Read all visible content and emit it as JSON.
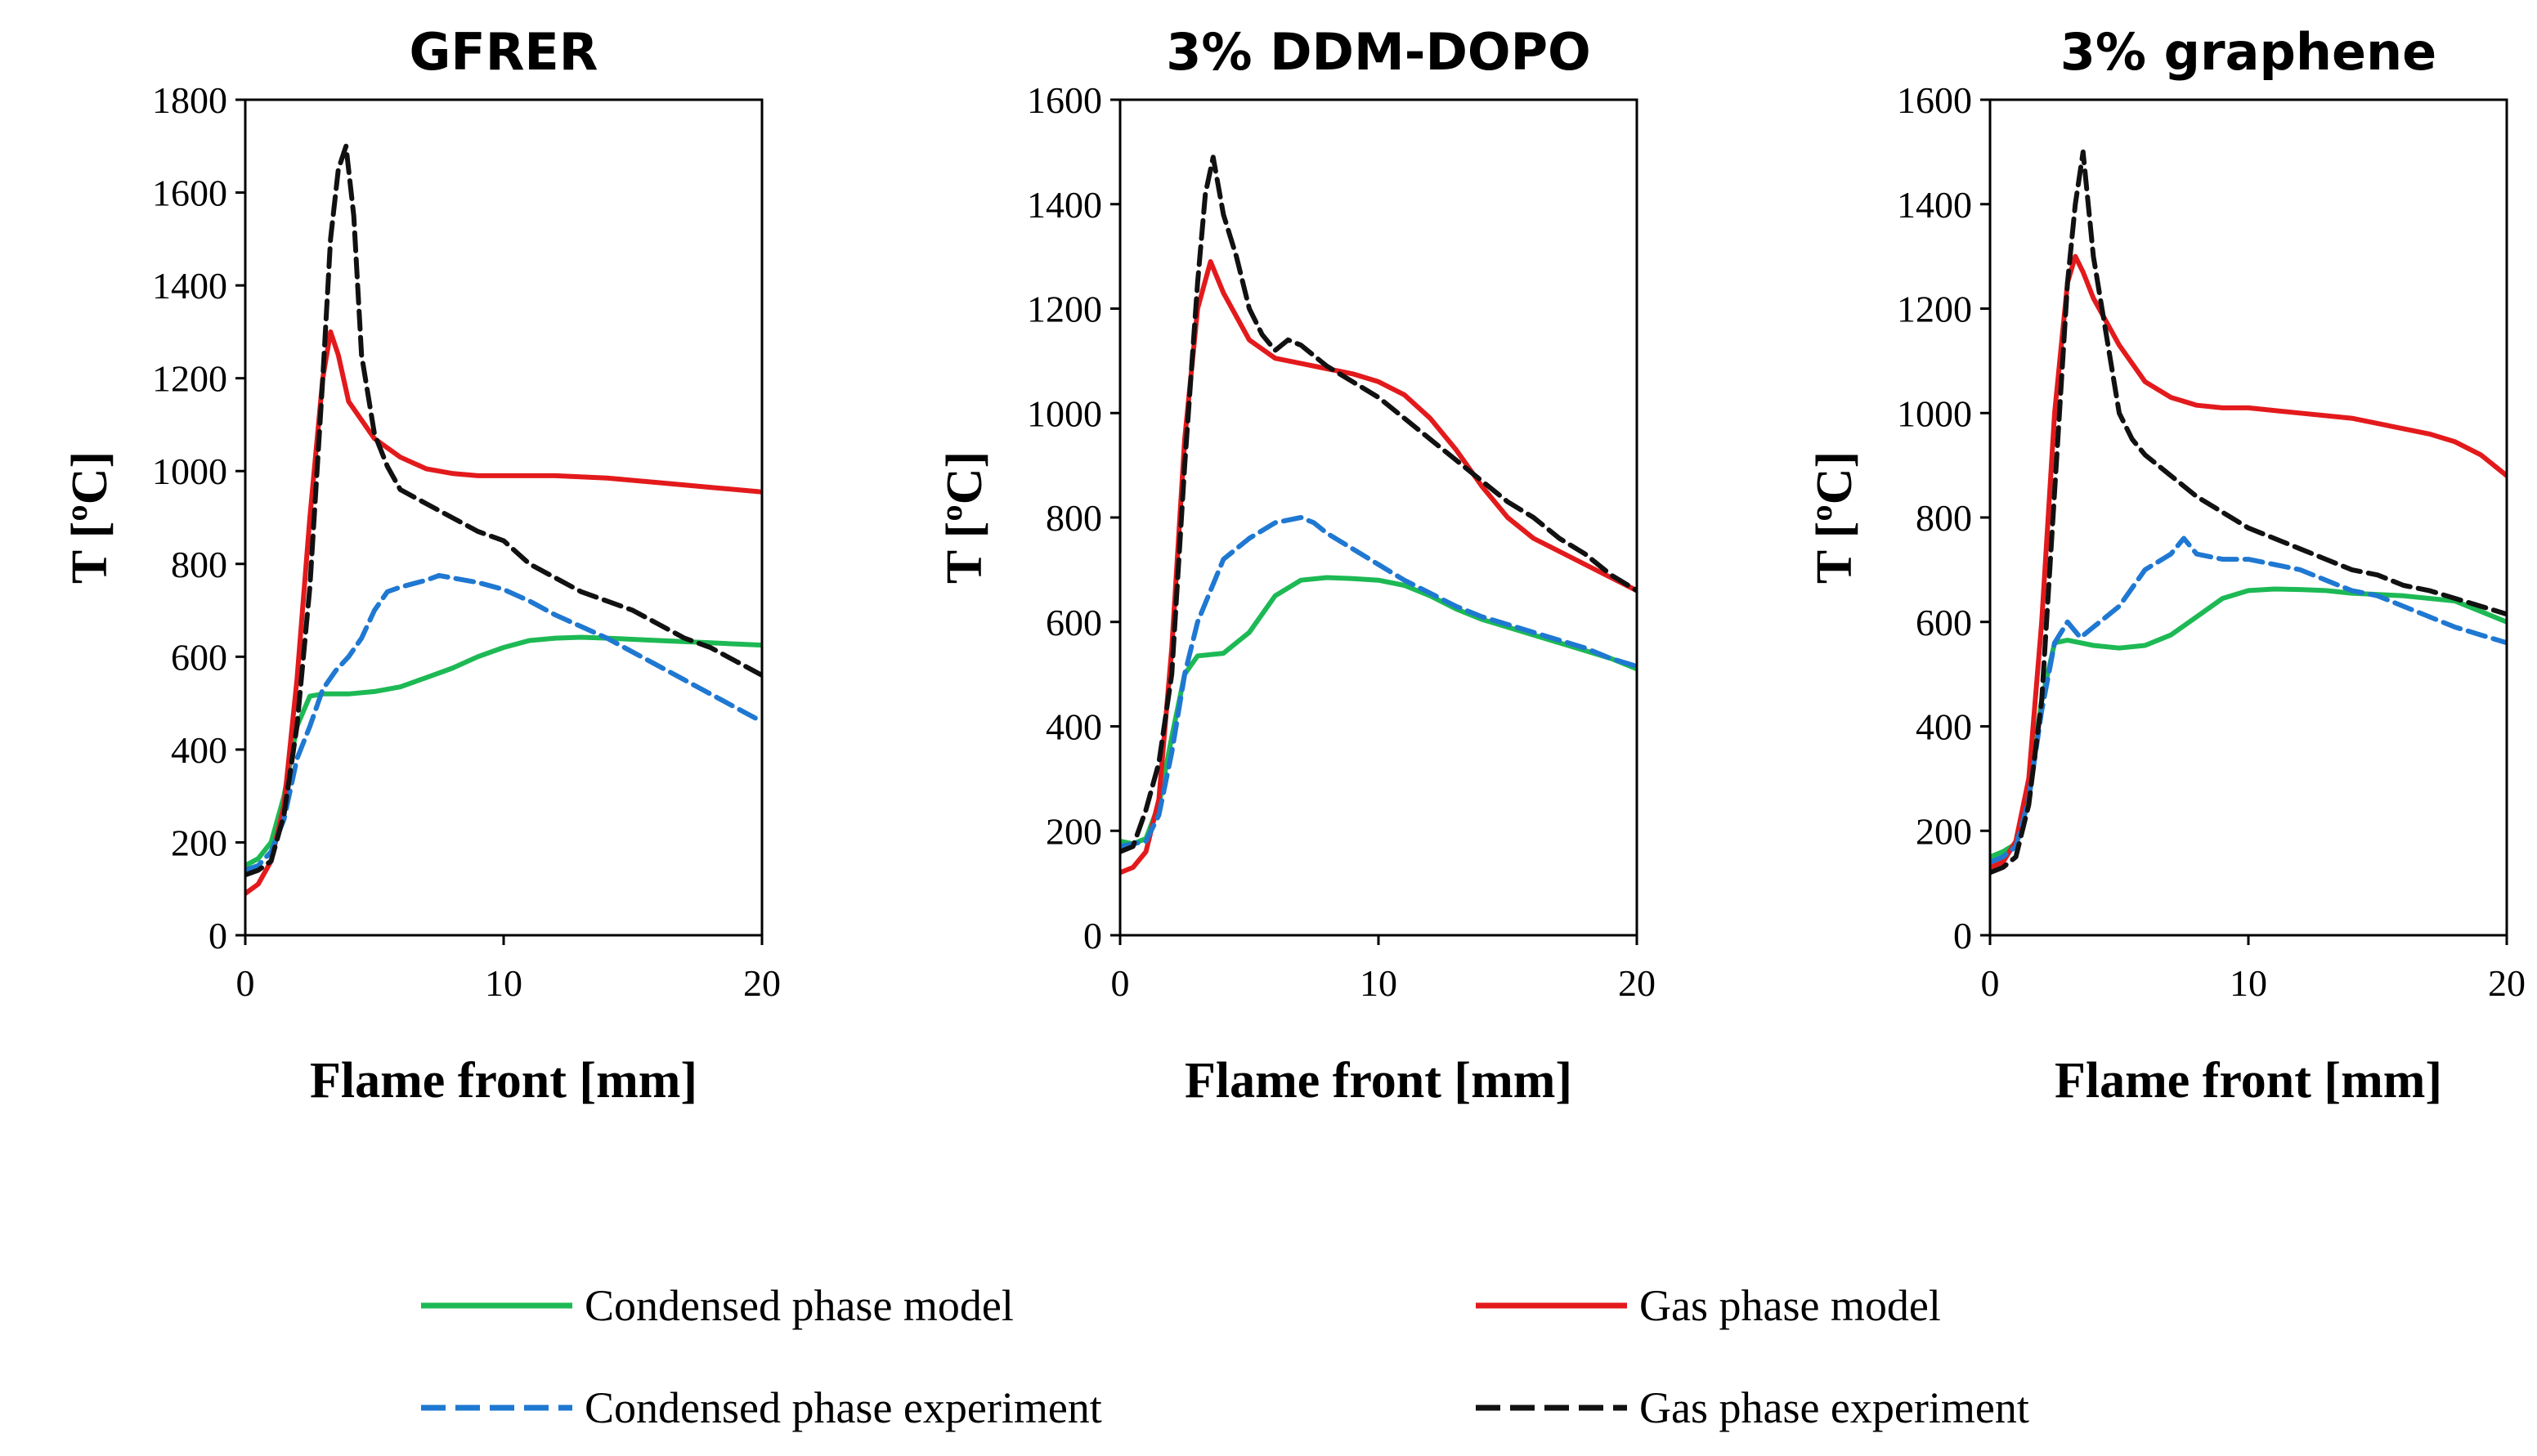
{
  "colors": {
    "condensed_model": "#1db954",
    "gas_model": "#e31a1c",
    "condensed_experiment": "#1f78d1",
    "gas_experiment": "#111111"
  },
  "chart_data": [
    {
      "type": "line",
      "title": "GFRER",
      "xlabel": "Flame front [mm]",
      "ylabel": "T [ºC]",
      "xlim": [
        0,
        20
      ],
      "ylim": [
        0,
        1800
      ],
      "xticks": [
        "0",
        "10",
        "20"
      ],
      "yticks": [
        "0",
        "200",
        "400",
        "600",
        "800",
        "1000",
        "1200",
        "1400",
        "1600",
        "1800"
      ],
      "series": [
        {
          "name": "Condensed phase model",
          "style": "solid",
          "color_key": "condensed_model",
          "x": [
            0,
            0.5,
            1,
            1.5,
            2,
            2.5,
            3,
            4,
            5,
            6,
            7,
            8,
            9,
            10,
            11,
            12,
            13,
            14,
            16,
            18,
            20
          ],
          "y": [
            150,
            165,
            200,
            300,
            450,
            515,
            520,
            520,
            525,
            535,
            555,
            575,
            600,
            620,
            635,
            640,
            642,
            640,
            635,
            630,
            625
          ]
        },
        {
          "name": "Gas phase model",
          "style": "solid",
          "color_key": "gas_model",
          "x": [
            0,
            0.5,
            1,
            1.5,
            2,
            2.5,
            3,
            3.3,
            3.6,
            4,
            5,
            6,
            7,
            8,
            9,
            10,
            12,
            14,
            16,
            18,
            20
          ],
          "y": [
            90,
            110,
            160,
            280,
            550,
            900,
            1200,
            1300,
            1250,
            1150,
            1070,
            1030,
            1005,
            995,
            990,
            990,
            990,
            985,
            975,
            965,
            955
          ]
        },
        {
          "name": "Condensed phase experiment",
          "style": "dashed",
          "color_key": "condensed_experiment",
          "x": [
            0,
            0.5,
            1,
            1.5,
            2,
            2.5,
            3,
            3.5,
            4,
            4.5,
            5,
            5.5,
            6,
            7,
            7.5,
            8,
            9,
            10,
            11,
            12,
            13,
            14,
            15,
            16,
            17,
            18,
            19,
            20
          ],
          "y": [
            140,
            150,
            180,
            250,
            380,
            450,
            530,
            570,
            600,
            640,
            700,
            740,
            750,
            765,
            775,
            770,
            760,
            745,
            720,
            690,
            665,
            640,
            610,
            580,
            550,
            520,
            490,
            460
          ]
        },
        {
          "name": "Gas phase experiment",
          "style": "dashed",
          "color_key": "gas_experiment",
          "x": [
            0,
            0.5,
            1,
            1.5,
            2,
            2.5,
            3,
            3.3,
            3.6,
            3.9,
            4.2,
            4.5,
            5,
            5.5,
            6,
            7,
            8,
            9,
            10,
            11,
            12,
            13,
            14,
            15,
            16,
            17,
            18,
            19,
            20
          ],
          "y": [
            130,
            140,
            160,
            260,
            450,
            750,
            1200,
            1500,
            1650,
            1700,
            1550,
            1250,
            1080,
            1010,
            960,
            930,
            900,
            870,
            850,
            800,
            770,
            740,
            720,
            700,
            670,
            640,
            620,
            590,
            560
          ]
        }
      ]
    },
    {
      "type": "line",
      "title": "3% DDM-DOPO",
      "xlabel": "Flame front [mm]",
      "ylabel": "T [ºC]",
      "xlim": [
        0,
        20
      ],
      "ylim": [
        0,
        1600
      ],
      "xticks": [
        "0",
        "10",
        "20"
      ],
      "yticks": [
        "0",
        "200",
        "400",
        "600",
        "800",
        "1000",
        "1200",
        "1400",
        "1600"
      ],
      "series": [
        {
          "name": "Condensed phase model",
          "style": "solid",
          "color_key": "condensed_model",
          "x": [
            0,
            0.5,
            1,
            1.5,
            2,
            2.5,
            3,
            4,
            5,
            6,
            7,
            8,
            9,
            10,
            11,
            12,
            13,
            14,
            15,
            16,
            17,
            18,
            19,
            20
          ],
          "y": [
            180,
            175,
            185,
            250,
            380,
            500,
            535,
            540,
            580,
            650,
            680,
            685,
            683,
            680,
            670,
            650,
            625,
            605,
            590,
            575,
            560,
            545,
            530,
            510
          ]
        },
        {
          "name": "Gas phase model",
          "style": "solid",
          "color_key": "gas_model",
          "x": [
            0,
            0.5,
            1,
            1.5,
            2,
            2.5,
            3,
            3.5,
            4,
            5,
            6,
            7,
            8,
            9,
            10,
            11,
            12,
            13,
            14,
            15,
            16,
            17,
            18,
            19,
            20
          ],
          "y": [
            120,
            130,
            160,
            260,
            550,
            950,
            1200,
            1290,
            1230,
            1140,
            1105,
            1095,
            1085,
            1075,
            1060,
            1035,
            990,
            930,
            860,
            800,
            760,
            735,
            710,
            685,
            660
          ]
        },
        {
          "name": "Condensed phase experiment",
          "style": "dashed",
          "color_key": "condensed_experiment",
          "x": [
            0,
            0.5,
            1,
            1.5,
            2,
            2.5,
            3,
            3.5,
            4,
            5,
            6,
            7,
            7.5,
            8,
            9,
            10,
            11,
            12,
            13,
            14,
            15,
            16,
            17,
            18,
            19,
            20
          ],
          "y": [
            170,
            175,
            180,
            230,
            350,
            500,
            600,
            660,
            720,
            760,
            790,
            800,
            790,
            770,
            740,
            710,
            680,
            655,
            630,
            610,
            595,
            580,
            565,
            550,
            530,
            515
          ]
        },
        {
          "name": "Gas phase experiment",
          "style": "dashed",
          "color_key": "gas_experiment",
          "x": [
            0,
            0.5,
            1,
            1.5,
            2,
            2.5,
            3,
            3.3,
            3.6,
            4,
            4.5,
            5,
            5.5,
            6,
            6.5,
            7,
            8,
            9,
            10,
            11,
            12,
            13,
            14,
            15,
            16,
            17,
            18,
            19,
            20
          ],
          "y": [
            160,
            170,
            240,
            330,
            500,
            900,
            1250,
            1420,
            1490,
            1380,
            1300,
            1200,
            1150,
            1120,
            1140,
            1130,
            1090,
            1060,
            1030,
            990,
            950,
            910,
            870,
            830,
            800,
            760,
            730,
            690,
            660
          ]
        }
      ]
    },
    {
      "type": "line",
      "title": "3% graphene",
      "xlabel": "Flame front [mm]",
      "ylabel": "T [ºC]",
      "xlim": [
        0,
        20
      ],
      "ylim": [
        0,
        1600
      ],
      "xticks": [
        "0",
        "10",
        "20"
      ],
      "yticks": [
        "0",
        "200",
        "400",
        "600",
        "800",
        "1000",
        "1200",
        "1400",
        "1600"
      ],
      "series": [
        {
          "name": "Condensed phase model",
          "style": "solid",
          "color_key": "condensed_model",
          "x": [
            0,
            0.5,
            1,
            1.5,
            2,
            2.5,
            3,
            4,
            5,
            6,
            7,
            8,
            9,
            10,
            11,
            12,
            13,
            14,
            16,
            18,
            20
          ],
          "y": [
            150,
            160,
            175,
            280,
            450,
            560,
            565,
            555,
            550,
            555,
            575,
            610,
            645,
            660,
            663,
            662,
            660,
            655,
            650,
            640,
            600
          ]
        },
        {
          "name": "Gas phase model",
          "style": "solid",
          "color_key": "gas_model",
          "x": [
            0,
            0.5,
            1,
            1.5,
            2,
            2.5,
            3,
            3.3,
            3.6,
            4,
            5,
            6,
            7,
            8,
            9,
            10,
            12,
            14,
            16,
            17,
            18,
            19,
            20
          ],
          "y": [
            130,
            140,
            180,
            300,
            600,
            1000,
            1250,
            1300,
            1270,
            1220,
            1130,
            1060,
            1030,
            1015,
            1010,
            1010,
            1000,
            990,
            970,
            960,
            945,
            920,
            880
          ]
        },
        {
          "name": "Condensed phase experiment",
          "style": "dashed",
          "color_key": "condensed_experiment",
          "x": [
            0,
            0.5,
            1,
            1.5,
            2,
            2.5,
            3,
            3.5,
            4,
            5,
            6,
            7,
            7.5,
            8,
            9,
            10,
            11,
            12,
            13,
            14,
            15,
            16,
            17,
            18,
            19,
            20
          ],
          "y": [
            140,
            150,
            170,
            260,
            430,
            560,
            600,
            570,
            590,
            630,
            700,
            730,
            760,
            730,
            720,
            720,
            710,
            700,
            680,
            660,
            650,
            630,
            610,
            590,
            575,
            560
          ]
        },
        {
          "name": "Gas phase experiment",
          "style": "dashed",
          "color_key": "gas_experiment",
          "x": [
            0,
            0.5,
            1,
            1.5,
            2,
            2.5,
            3,
            3.3,
            3.6,
            4,
            4.5,
            5,
            5.5,
            6,
            7,
            8,
            9,
            10,
            11,
            12,
            13,
            14,
            15,
            16,
            17,
            18,
            19,
            20
          ],
          "y": [
            120,
            130,
            150,
            250,
            450,
            850,
            1250,
            1400,
            1500,
            1300,
            1150,
            1000,
            950,
            920,
            880,
            840,
            810,
            780,
            760,
            740,
            720,
            700,
            690,
            670,
            660,
            645,
            630,
            615
          ]
        }
      ]
    }
  ],
  "legend": {
    "entries": [
      {
        "label": "Condensed phase model",
        "style": "solid",
        "color_key": "condensed_model"
      },
      {
        "label": "Gas phase model",
        "style": "solid",
        "color_key": "gas_model"
      },
      {
        "label": "Condensed phase experiment",
        "style": "dashed",
        "color_key": "condensed_experiment"
      },
      {
        "label": "Gas phase experiment",
        "style": "dashed",
        "color_key": "gas_experiment"
      }
    ]
  }
}
